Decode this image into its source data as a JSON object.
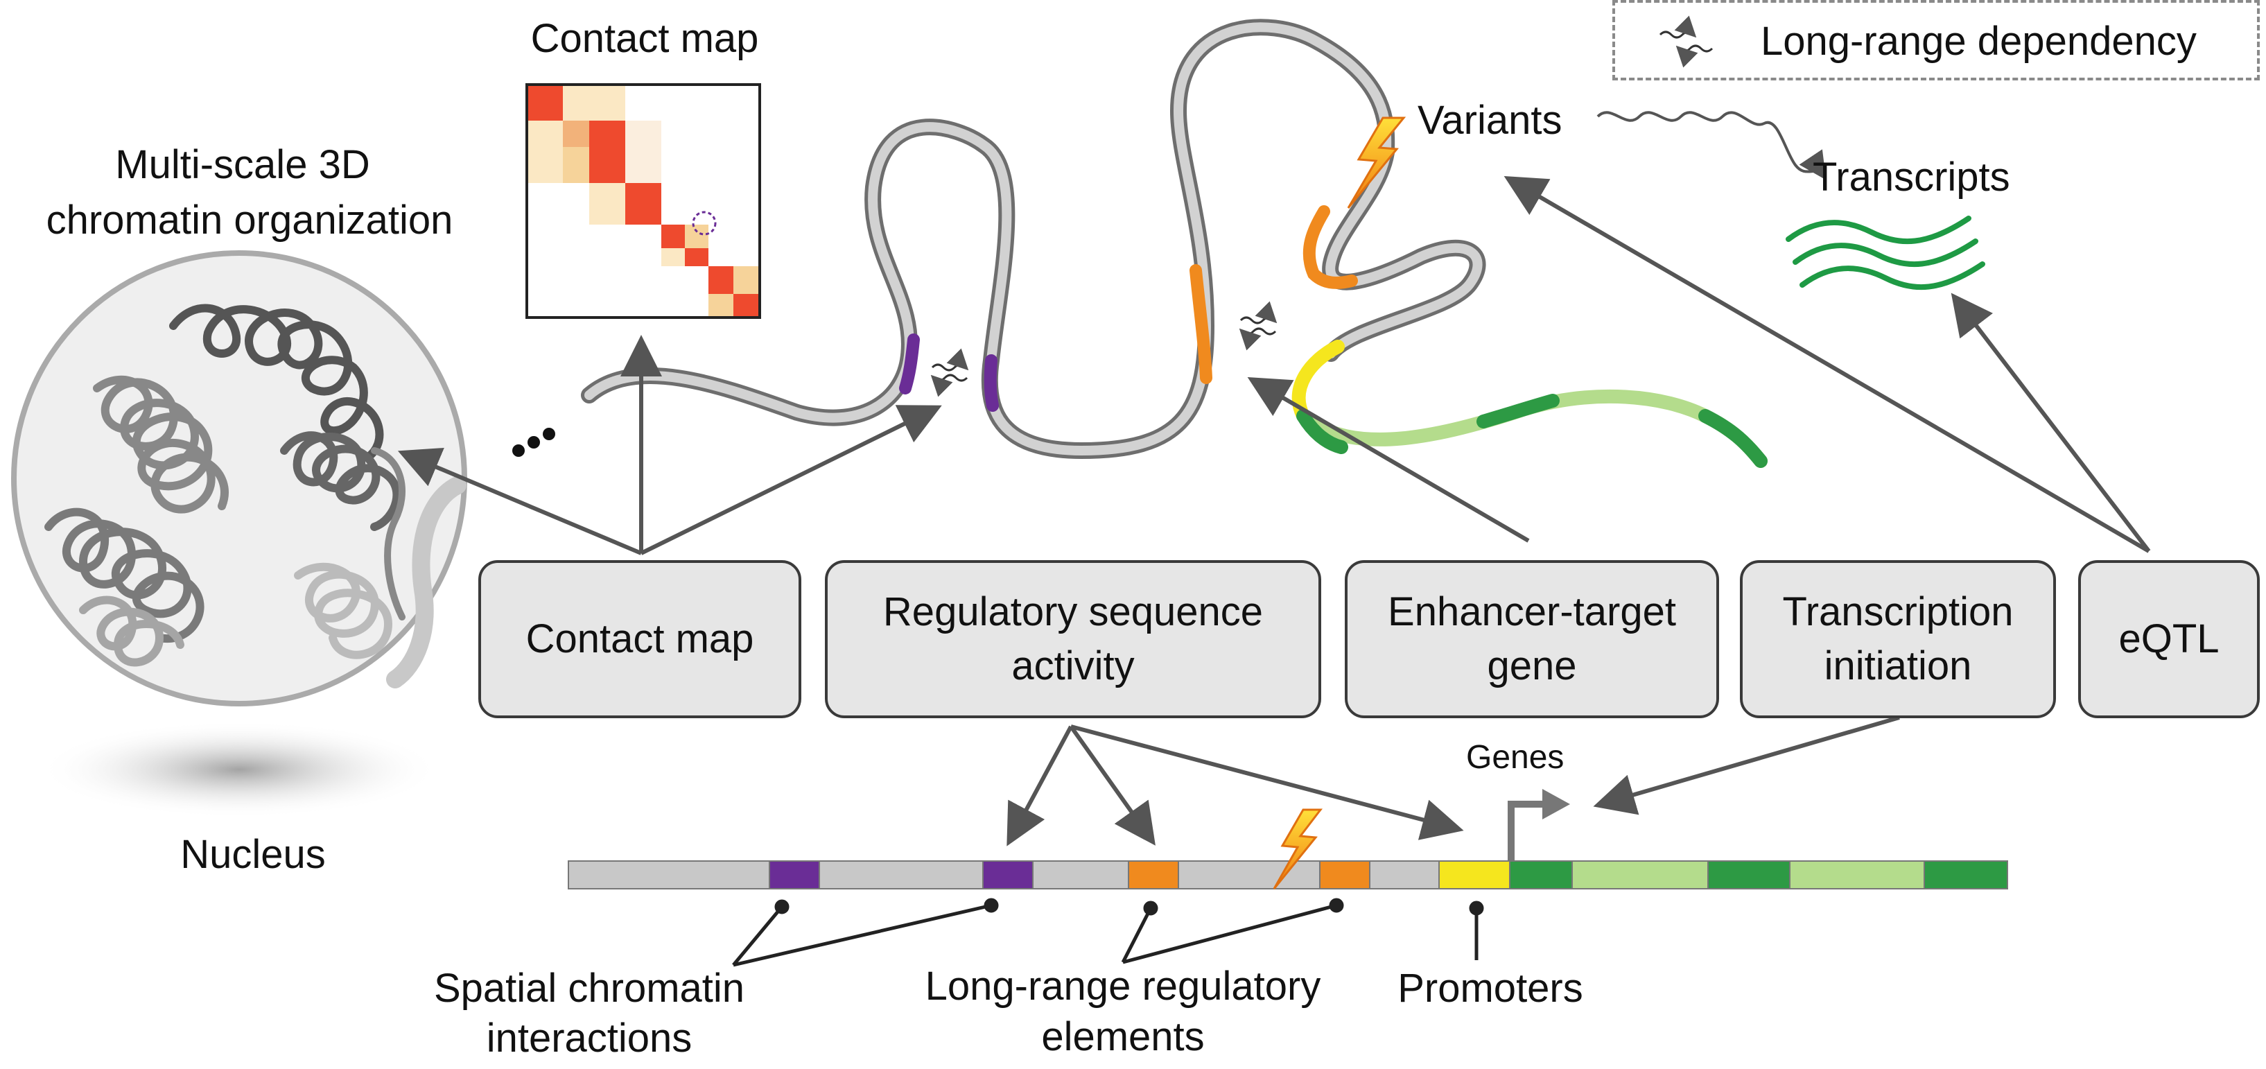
{
  "legend": {
    "label": "Long-range dependency",
    "icon": "wavy-double-arrow-icon"
  },
  "labels": {
    "contact_map_title": "Contact map",
    "multiscale_line1": "Multi-scale 3D",
    "multiscale_line2": "chromatin organization",
    "nucleus": "Nucleus",
    "variants": "Variants",
    "transcripts": "Transcripts",
    "genes": "Genes",
    "spatial_line1": "Spatial chromatin",
    "spatial_line2": "interactions",
    "longrange_line1": "Long-range regulatory",
    "longrange_line2": "elements",
    "promoters": "Promoters"
  },
  "tasks": [
    {
      "line1": "Contact map",
      "line2": ""
    },
    {
      "line1": "Regulatory sequence",
      "line2": "activity"
    },
    {
      "line1": "Enhancer-target",
      "line2": "gene"
    },
    {
      "line1": "Transcription",
      "line2": "initiation"
    },
    {
      "line1": "eQTL",
      "line2": ""
    }
  ],
  "colors": {
    "purple": "#6a2d96",
    "orange": "#f08a1e",
    "yellow": "#f5e61e",
    "dark_green": "#2d9a44",
    "light_green": "#b4dc8c",
    "gray_segment": "#c8c8c8",
    "arrow": "#555555",
    "box_fill": "#e6e6e6",
    "heat_red": "#ee4a2e",
    "heat_light": "#fbe8c4"
  }
}
